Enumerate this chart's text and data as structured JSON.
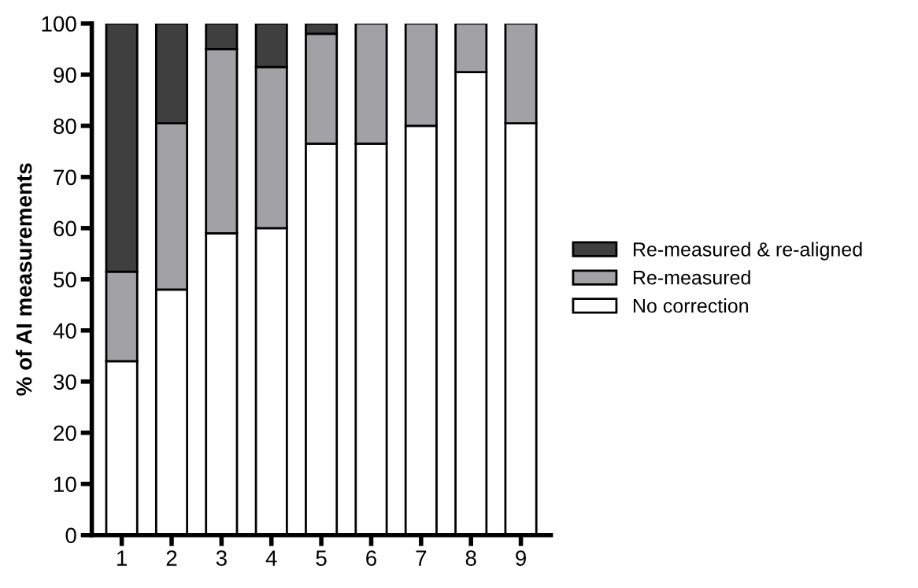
{
  "chart_data": {
    "type": "bar",
    "stacked": true,
    "ylabel": "% of AI measurements",
    "categories": [
      "1",
      "2",
      "3",
      "4",
      "5",
      "6",
      "7",
      "8",
      "9"
    ],
    "series": [
      {
        "name": "No correction",
        "color": "#ffffff",
        "values": [
          34,
          48,
          59,
          60,
          76.5,
          76.5,
          80,
          90.5,
          80.5
        ]
      },
      {
        "name": "Re-measured",
        "color": "#a2a1a5",
        "values": [
          17.5,
          32.5,
          36,
          31.5,
          21.5,
          23.5,
          20,
          9.5,
          19.5
        ]
      },
      {
        "name": "Re-measured & re-aligned",
        "color": "#3f3f3f",
        "values": [
          48.5,
          19.5,
          5,
          8.5,
          2,
          null,
          null,
          null,
          null
        ]
      }
    ],
    "ylim": [
      0,
      100
    ],
    "yticks": [
      0,
      10,
      20,
      30,
      40,
      50,
      60,
      70,
      80,
      90,
      100
    ],
    "grid": false,
    "legend": "right"
  }
}
